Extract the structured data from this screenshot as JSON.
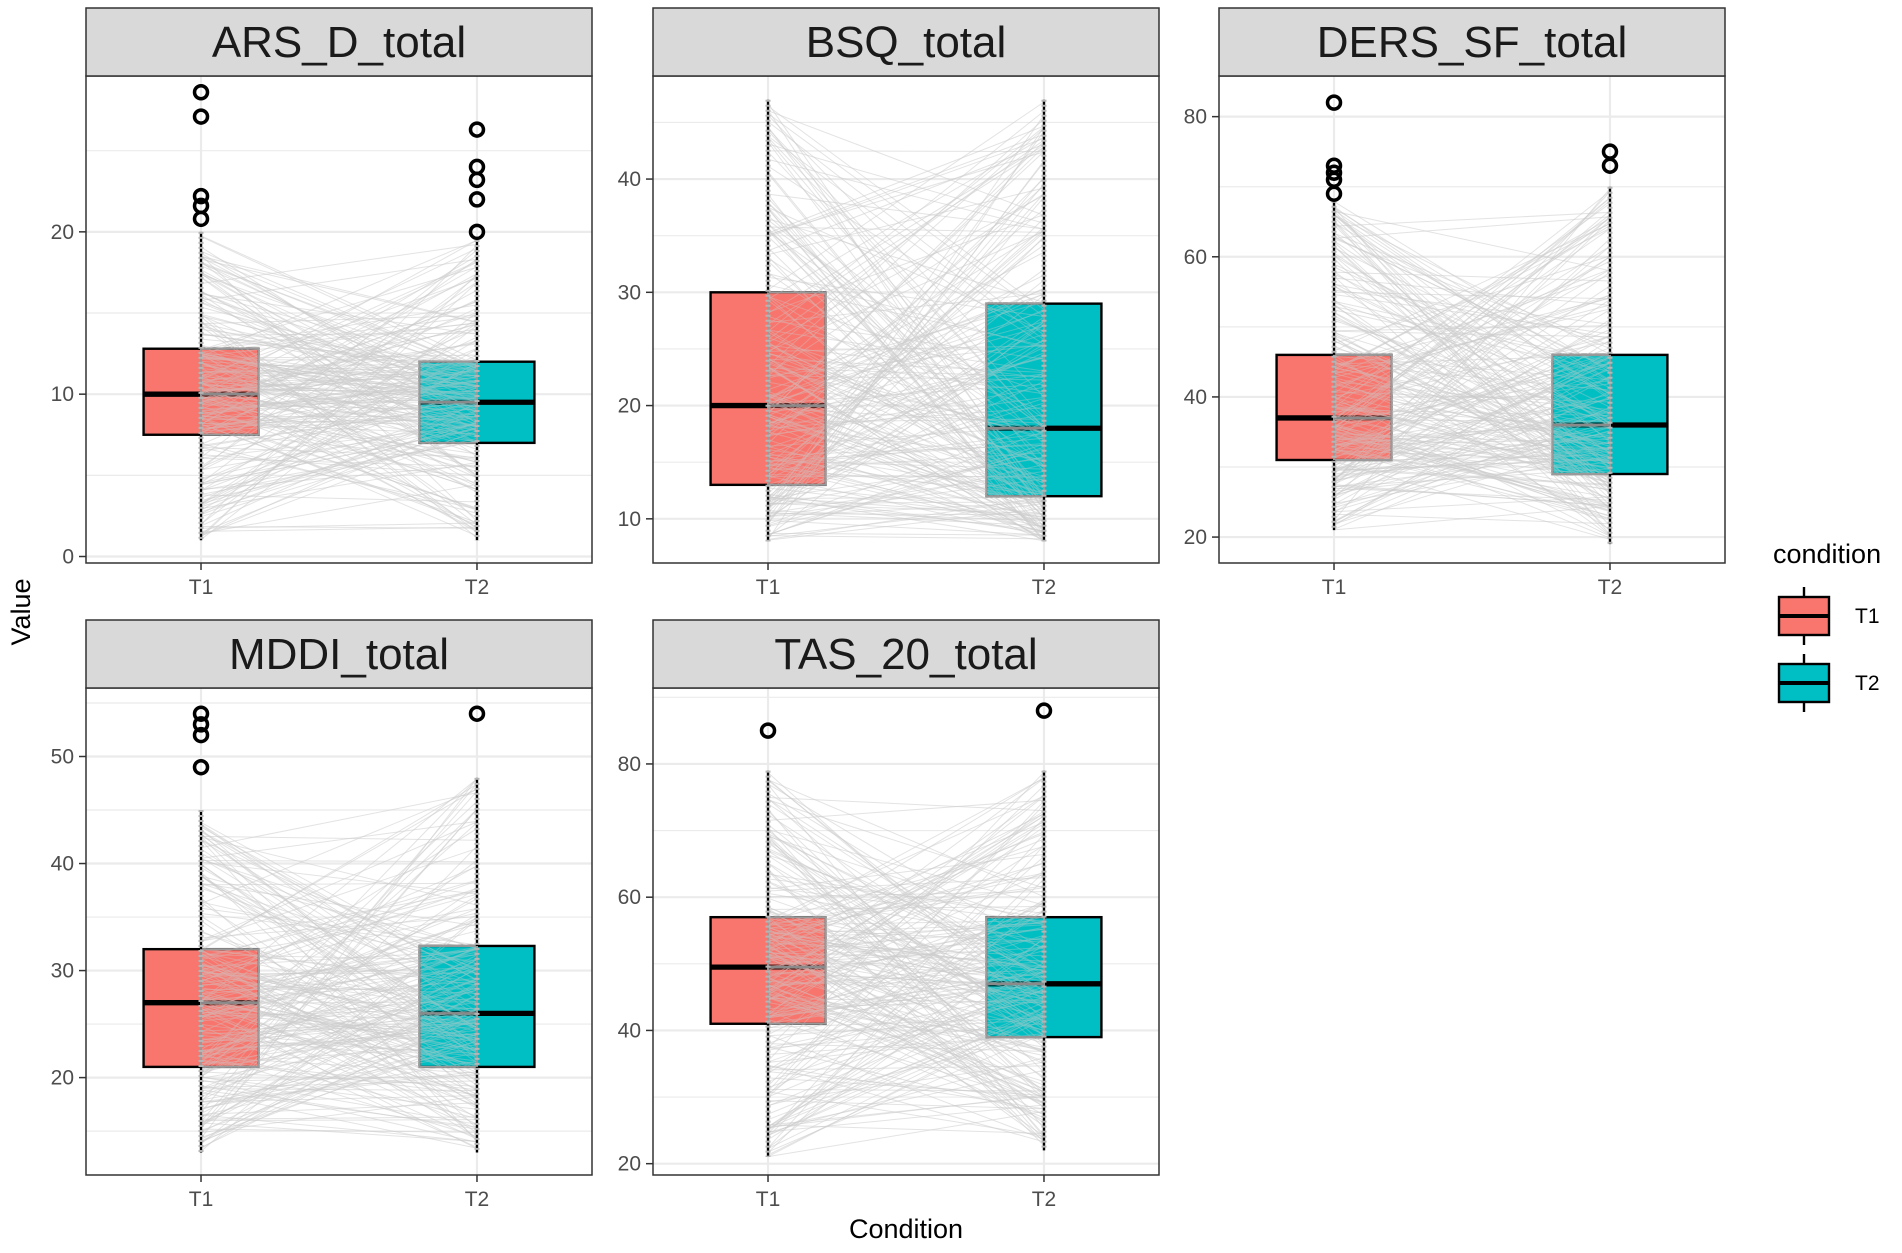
{
  "x_axis_title": "Condition",
  "y_axis_title": "Value",
  "legend": {
    "title": "condition",
    "items": [
      {
        "label": "T1",
        "color": "#F8766D"
      },
      {
        "label": "T2",
        "color": "#00BFC4"
      }
    ]
  },
  "colors": {
    "T1": "#F8766D",
    "T2": "#00BFC4",
    "strip_bg": "#D9D9D9",
    "lines": "#cccccc",
    "grid": "#ebebeb"
  },
  "chart_data": [
    {
      "type": "boxplot",
      "title": "ARS_D_total",
      "categories": [
        "T1",
        "T2"
      ],
      "ylim": [
        -0.4,
        29.6
      ],
      "yticks": [
        0,
        10,
        20
      ],
      "series": [
        {
          "name": "T1",
          "q1": 7.5,
          "median": 10,
          "q3": 12.8,
          "whisker_low": 1,
          "whisker_high": 20,
          "outliers": [
            28.6,
            27.1,
            22.2,
            21.6,
            20.8
          ]
        },
        {
          "name": "T2",
          "q1": 7,
          "median": 9.5,
          "q3": 12,
          "whisker_low": 1,
          "whisker_high": 19.5,
          "outliers": [
            26.3,
            24,
            23.2,
            22,
            20
          ]
        }
      ]
    },
    {
      "type": "boxplot",
      "title": "BSQ_total",
      "categories": [
        "T1",
        "T2"
      ],
      "ylim": [
        6.1,
        49.1
      ],
      "yticks": [
        10,
        20,
        30,
        40
      ],
      "series": [
        {
          "name": "T1",
          "q1": 13,
          "median": 20,
          "q3": 30,
          "whisker_low": 8,
          "whisker_high": 47,
          "outliers": []
        },
        {
          "name": "T2",
          "q1": 12,
          "median": 18,
          "q3": 29,
          "whisker_low": 8,
          "whisker_high": 47,
          "outliers": []
        }
      ]
    },
    {
      "type": "boxplot",
      "title": "DERS_SF_total",
      "categories": [
        "T1",
        "T2"
      ],
      "ylim": [
        16.3,
        85.8
      ],
      "yticks": [
        20,
        40,
        60,
        80
      ],
      "series": [
        {
          "name": "T1",
          "q1": 31,
          "median": 37,
          "q3": 46,
          "whisker_low": 21,
          "whisker_high": 68,
          "outliers": [
            82,
            73,
            72,
            71,
            69
          ]
        },
        {
          "name": "T2",
          "q1": 29,
          "median": 36,
          "q3": 46,
          "whisker_low": 19,
          "whisker_high": 70,
          "outliers": [
            75,
            73
          ]
        }
      ]
    },
    {
      "type": "boxplot",
      "title": "MDDI_total",
      "categories": [
        "T1",
        "T2"
      ],
      "ylim": [
        10.9,
        56.4
      ],
      "yticks": [
        20,
        30,
        40,
        50
      ],
      "series": [
        {
          "name": "T1",
          "q1": 21,
          "median": 27,
          "q3": 32,
          "whisker_low": 13,
          "whisker_high": 45,
          "outliers": [
            54,
            53,
            52,
            49
          ]
        },
        {
          "name": "T2",
          "q1": 21,
          "median": 26,
          "q3": 32.3,
          "whisker_low": 13,
          "whisker_high": 48,
          "outliers": [
            54
          ]
        }
      ]
    },
    {
      "type": "boxplot",
      "title": "TAS_20_total",
      "categories": [
        "T1",
        "T2"
      ],
      "ylim": [
        18.3,
        91.4
      ],
      "yticks": [
        20,
        40,
        60,
        80
      ],
      "series": [
        {
          "name": "T1",
          "q1": 41,
          "median": 49.5,
          "q3": 57,
          "whisker_low": 21,
          "whisker_high": 79,
          "outliers": [
            85
          ]
        },
        {
          "name": "T2",
          "q1": 39,
          "median": 47,
          "q3": 57,
          "whisker_low": 22,
          "whisker_high": 79,
          "outliers": [
            88
          ]
        }
      ]
    }
  ]
}
